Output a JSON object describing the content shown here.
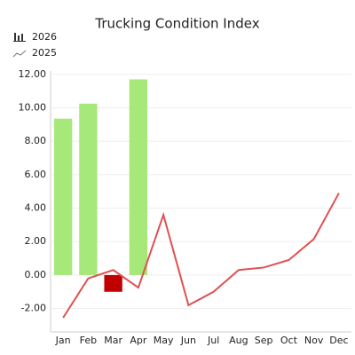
{
  "chart_data": {
    "type": "bar",
    "title": "Trucking Condition Index",
    "categories": [
      "Jan",
      "Feb",
      "Mar",
      "Apr",
      "May",
      "Jun",
      "Jul",
      "Aug",
      "Sep",
      "Oct",
      "Nov",
      "Dec"
    ],
    "series": [
      {
        "name": "2026",
        "type": "bar",
        "color": "#a6e879",
        "colors": [
          "#a6e879",
          "#a6e879",
          "#c00000",
          "#a6e879",
          null,
          null,
          null,
          null,
          null,
          null,
          null,
          null
        ],
        "values": [
          9.35,
          10.25,
          -1.0,
          11.7,
          null,
          null,
          null,
          null,
          null,
          null,
          null,
          null
        ]
      },
      {
        "name": "2025",
        "type": "line",
        "color": "#e05050",
        "values": [
          -2.55,
          -0.2,
          0.3,
          -0.75,
          3.6,
          -1.8,
          -1.0,
          0.3,
          0.45,
          0.9,
          2.15,
          4.9
        ]
      }
    ],
    "ylim": [
      -3.4,
      12.2
    ],
    "yticks": [
      {
        "value": -2,
        "label": "-2.00"
      },
      {
        "value": 0,
        "label": "0.00"
      },
      {
        "value": 2,
        "label": "2.00"
      },
      {
        "value": 4,
        "label": "4.00"
      },
      {
        "value": 6,
        "label": "6.00"
      },
      {
        "value": 8,
        "label": "8.00"
      },
      {
        "value": 10,
        "label": "10.00"
      },
      {
        "value": 12,
        "label": "12.00"
      }
    ],
    "grid": true
  }
}
